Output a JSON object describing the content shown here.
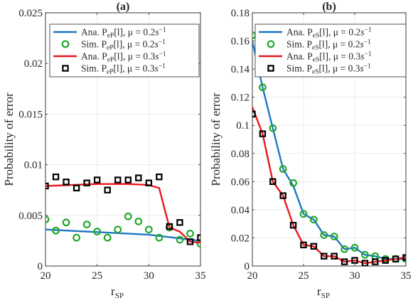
{
  "chart_data": [
    {
      "type": "line",
      "title": "(a)",
      "xlabel": "r",
      "xlabel_sub": "SP",
      "ylabel": "Probability of error",
      "xlim": [
        20,
        35
      ],
      "ylim": [
        0,
        0.025
      ],
      "xticks": [
        20,
        25,
        30,
        35
      ],
      "xtick_labels": [
        "20",
        "25",
        "30",
        "35"
      ],
      "yticks": [
        0,
        0.005,
        0.01,
        0.015,
        0.02,
        0.025
      ],
      "ytick_labels": [
        "0",
        "0.005",
        "0.01",
        "0.015",
        "0.02",
        "0.025"
      ],
      "grid": true,
      "legend_position": "top-right",
      "series": [
        {
          "name": "Ana. PeP[l], μ = 0.2s^-1",
          "legend": {
            "prefix": "Ana.",
            "P": "P",
            "sub": "eP",
            "idx": "[l], μ = 0.2",
            "unit": "s",
            "sup": "−1"
          },
          "kind": "line",
          "color": "#1f77c4",
          "x": [
            20,
            30,
            34,
            35
          ],
          "y": [
            0.0036,
            0.0031,
            0.0026,
            0.0025
          ]
        },
        {
          "name": "Sim. PeP[l], μ = 0.2s^-1",
          "legend": {
            "prefix": "Sim.",
            "P": "P",
            "sub": "eP",
            "idx": "[l], μ = 0.2",
            "unit": "s",
            "sup": "−1"
          },
          "kind": "marker",
          "marker": "circle",
          "color": "#22a82a",
          "x": [
            20,
            21,
            22,
            23,
            24,
            25,
            26,
            27,
            28,
            29,
            30,
            31,
            32,
            33,
            34,
            35
          ],
          "y": [
            0.0046,
            0.0035,
            0.0043,
            0.0028,
            0.0041,
            0.0034,
            0.0028,
            0.0036,
            0.0049,
            0.0044,
            0.0036,
            0.0028,
            0.0038,
            0.0026,
            0.0032,
            0.0022
          ]
        },
        {
          "name": "Ana. PeP[l], μ = 0.3s^-1",
          "legend": {
            "prefix": "Ana.",
            "P": "P",
            "sub": "eP",
            "idx": "[l], μ = 0.3",
            "unit": "s",
            "sup": "−1"
          },
          "kind": "line",
          "color": "#e8191f",
          "x": [
            20,
            25,
            28,
            30,
            31,
            32,
            33,
            34,
            35
          ],
          "y": [
            0.0079,
            0.0081,
            0.0081,
            0.008,
            0.0077,
            0.0038,
            0.0034,
            0.0024,
            0.0023
          ]
        },
        {
          "name": "Sim. PeP[l], μ = 0.3s^-1",
          "legend": {
            "prefix": "Sim.",
            "P": "P",
            "sub": "eP",
            "idx": "[l], μ = 0.3",
            "unit": "s",
            "sup": "−1"
          },
          "kind": "marker",
          "marker": "square",
          "color": "#000000",
          "x": [
            20,
            21,
            22,
            23,
            24,
            25,
            26,
            27,
            28,
            29,
            30,
            31,
            32,
            33,
            34,
            35
          ],
          "y": [
            0.0079,
            0.0088,
            0.0083,
            0.0077,
            0.0082,
            0.0085,
            0.0075,
            0.0085,
            0.0085,
            0.0087,
            0.0082,
            0.0088,
            0.0039,
            0.0043,
            0.0024,
            0.0028
          ]
        }
      ]
    },
    {
      "type": "line",
      "title": "(b)",
      "xlabel": "r",
      "xlabel_sub": "SP",
      "ylabel": "Probability of error",
      "xlim": [
        20,
        35
      ],
      "ylim": [
        0,
        0.18
      ],
      "xticks": [
        20,
        25,
        30,
        35
      ],
      "xtick_labels": [
        "20",
        "25",
        "30",
        "35"
      ],
      "yticks": [
        0,
        0.02,
        0.04,
        0.06,
        0.08,
        0.1,
        0.12,
        0.14,
        0.16,
        0.18
      ],
      "ytick_labels": [
        "0",
        "0.02",
        "0.04",
        "0.06",
        "0.08",
        "0.1",
        "0.12",
        "0.14",
        "0.16",
        "0.18"
      ],
      "grid": true,
      "legend_position": "top-right",
      "series": [
        {
          "name": "Ana. PeS[l], μ = 0.2s^-1",
          "legend": {
            "prefix": "Ana.",
            "P": "P",
            "sub": "eS",
            "idx": "[l], μ = 0.2",
            "unit": "s",
            "sup": "−1"
          },
          "kind": "line",
          "color": "#1f77c4",
          "x": [
            20,
            21,
            22,
            23,
            24,
            25,
            26,
            27,
            28,
            29,
            30,
            31,
            32,
            33,
            34,
            35
          ],
          "y": [
            0.16,
            0.127,
            0.098,
            0.069,
            0.057,
            0.037,
            0.033,
            0.022,
            0.021,
            0.012,
            0.013,
            0.008,
            0.007,
            0.005,
            0.005,
            0.005
          ]
        },
        {
          "name": "Sim. PeS[l], μ = 0.2s^-1",
          "legend": {
            "prefix": "Sim.",
            "P": "P",
            "sub": "eS",
            "idx": "[l], μ = 0.2",
            "unit": "s",
            "sup": "−1"
          },
          "kind": "marker",
          "marker": "circle",
          "color": "#22a82a",
          "x": [
            20,
            21,
            22,
            23,
            24,
            25,
            26,
            27,
            28,
            29,
            30,
            31,
            32,
            33,
            34,
            35
          ],
          "y": [
            0.164,
            0.127,
            0.098,
            0.069,
            0.059,
            0.037,
            0.033,
            0.022,
            0.021,
            0.012,
            0.013,
            0.008,
            0.007,
            0.005,
            0.005,
            0.005
          ]
        },
        {
          "name": "Ana. PeS[l], μ = 0.3s^-1",
          "legend": {
            "prefix": "Ana.",
            "P": "P",
            "sub": "eS",
            "idx": "[l], μ = 0.3",
            "unit": "s",
            "sup": "−1"
          },
          "kind": "line",
          "color": "#e8191f",
          "x": [
            20,
            21,
            22,
            23,
            24,
            25,
            26,
            27,
            28,
            29,
            30,
            31,
            32,
            33,
            34,
            35
          ],
          "y": [
            0.113,
            0.094,
            0.06,
            0.05,
            0.029,
            0.015,
            0.014,
            0.007,
            0.007,
            0.003,
            0.004,
            0.002,
            0.003,
            0.004,
            0.005,
            0.006
          ]
        },
        {
          "name": "Sim. PeS[l], μ = 0.3s^-1",
          "legend": {
            "prefix": "Sim.",
            "P": "P",
            "sub": "eS",
            "idx": "[l], μ = 0.3",
            "unit": "s",
            "sup": "−1"
          },
          "kind": "marker",
          "marker": "square",
          "color": "#000000",
          "x": [
            20,
            21,
            22,
            23,
            24,
            25,
            26,
            27,
            28,
            29,
            30,
            31,
            32,
            33,
            34,
            35
          ],
          "y": [
            0.108,
            0.094,
            0.06,
            0.05,
            0.029,
            0.015,
            0.014,
            0.007,
            0.007,
            0.003,
            0.004,
            0.002,
            0.003,
            0.004,
            0.005,
            0.006
          ]
        }
      ]
    }
  ]
}
